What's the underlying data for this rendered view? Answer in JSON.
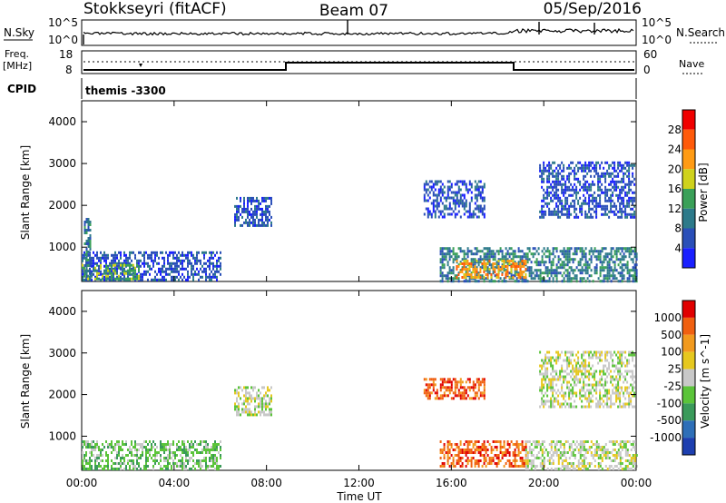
{
  "header": {
    "station": "Stokkseyri (fitACF)",
    "beam": "Beam 07",
    "date": "05/Sep/2016"
  },
  "nsky_panel": {
    "left_label": "N.Sky",
    "right_label": "N.Search",
    "left_ticks": [
      "10^5",
      "10^0"
    ],
    "right_ticks": [
      "10^5",
      "10^0"
    ]
  },
  "freq_panel": {
    "left_label_line1": "Freq.",
    "left_label_line2": "[MHz]",
    "right_label": "Nave",
    "left_ticks": [
      "18",
      "8"
    ],
    "right_ticks": [
      "60",
      "0"
    ]
  },
  "cpid_panel": {
    "label": "CPID",
    "program": "themis -3300"
  },
  "time_axis": {
    "label": "Time UT",
    "ticks": [
      "00:00",
      "04:00",
      "08:00",
      "12:00",
      "16:00",
      "20:00",
      "00:00"
    ]
  },
  "chart_data": [
    {
      "type": "heatmap",
      "quantity": "Power",
      "ylabel": "Slant Range [km]",
      "y_ticks": [
        1000,
        2000,
        3000,
        4000
      ],
      "ylim": [
        180,
        4500
      ],
      "xlim_hours": [
        0,
        24
      ],
      "colorbar_label": "Power [dB]",
      "colorbar_ticks": [
        "4",
        "8",
        "12",
        "16",
        "20",
        "24",
        "28"
      ],
      "colorbar_colors": [
        "#1a20ff",
        "#2a4fb8",
        "#2d7a8a",
        "#3aa058",
        "#cfd21c",
        "#ff9b14",
        "#ff5a0a",
        "#f00000"
      ],
      "echo_regions": [
        {
          "t_start": 0.0,
          "t_end": 6.0,
          "r_min": 200,
          "r_max": 900,
          "level": 1
        },
        {
          "t_start": 0.0,
          "t_end": 2.5,
          "r_min": 250,
          "r_max": 600,
          "level": 3
        },
        {
          "t_start": 0.1,
          "t_end": 0.4,
          "r_min": 250,
          "r_max": 1700,
          "level": 2
        },
        {
          "t_start": 6.6,
          "t_end": 8.2,
          "r_min": 1500,
          "r_max": 2200,
          "level": 1
        },
        {
          "t_start": 15.5,
          "t_end": 24.0,
          "r_min": 200,
          "r_max": 1000,
          "level": 2
        },
        {
          "t_start": 16.2,
          "t_end": 19.2,
          "r_min": 250,
          "r_max": 700,
          "level": 5
        },
        {
          "t_start": 14.8,
          "t_end": 17.4,
          "r_min": 1700,
          "r_max": 2600,
          "level": 1
        },
        {
          "t_start": 19.8,
          "t_end": 23.9,
          "r_min": 1700,
          "r_max": 3050,
          "level": 1
        }
      ]
    },
    {
      "type": "heatmap",
      "quantity": "Velocity",
      "ylabel": "Slant Range [km]",
      "y_ticks": [
        1000,
        2000,
        3000,
        4000
      ],
      "ylim": [
        180,
        4500
      ],
      "xlim_hours": [
        0,
        24
      ],
      "colorbar_label": "Velocity [m s^-1]",
      "colorbar_ticks": [
        "1000",
        "500",
        "100",
        "25",
        "-25",
        "-100",
        "-500",
        "-1000"
      ],
      "colorbar_colors": [
        "#1d3fb0",
        "#2e6fb8",
        "#3a9a5a",
        "#5bc43a",
        "#c8c8c8",
        "#e6c81e",
        "#f29a1e",
        "#f06010",
        "#e00000"
      ],
      "echo_regions": [
        {
          "t_start": 0.0,
          "t_end": 6.0,
          "r_min": 200,
          "r_max": 900,
          "level": 3
        },
        {
          "t_start": 6.6,
          "t_end": 8.2,
          "r_min": 1500,
          "r_max": 2200,
          "level": 4
        },
        {
          "t_start": 15.5,
          "t_end": 19.2,
          "r_min": 250,
          "r_max": 900,
          "level": 7
        },
        {
          "t_start": 19.2,
          "t_end": 24.0,
          "r_min": 200,
          "r_max": 900,
          "level": 4
        },
        {
          "t_start": 19.8,
          "t_end": 23.9,
          "r_min": 1700,
          "r_max": 3050,
          "level": 4
        },
        {
          "t_start": 14.8,
          "t_end": 17.4,
          "r_min": 1900,
          "r_max": 2400,
          "level": 7
        }
      ]
    }
  ]
}
